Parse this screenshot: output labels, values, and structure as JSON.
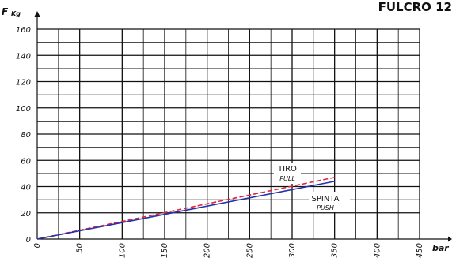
{
  "chart_data": {
    "type": "line",
    "title": "FULCRO 12",
    "xlabel": "bar",
    "ylabel": "F",
    "ylabel_unit": "Kg",
    "xlim": [
      0,
      450
    ],
    "ylim": [
      0,
      160
    ],
    "x_ticks": [
      0,
      50,
      100,
      150,
      200,
      250,
      300,
      350,
      400,
      450
    ],
    "x_tick_labels": [
      "0",
      "50",
      "100",
      "150",
      "200",
      "250",
      "300",
      "350",
      "400",
      "450"
    ],
    "y_ticks": [
      0,
      20,
      40,
      60,
      80,
      100,
      120,
      140,
      160
    ],
    "y_tick_labels": [
      "0",
      "20",
      "40",
      "60",
      "80",
      "100",
      "120",
      "140",
      "160"
    ],
    "grid": true,
    "series": [
      {
        "name": "TIRO",
        "subname": "PULL",
        "color": "#e0233a",
        "dashed": true,
        "x": [
          0,
          350
        ],
        "y": [
          0,
          47
        ]
      },
      {
        "name": "SPINTA",
        "subname": "PUSH",
        "color": "#2233aa",
        "dashed": false,
        "x": [
          0,
          350
        ],
        "y": [
          0,
          44
        ]
      }
    ]
  }
}
